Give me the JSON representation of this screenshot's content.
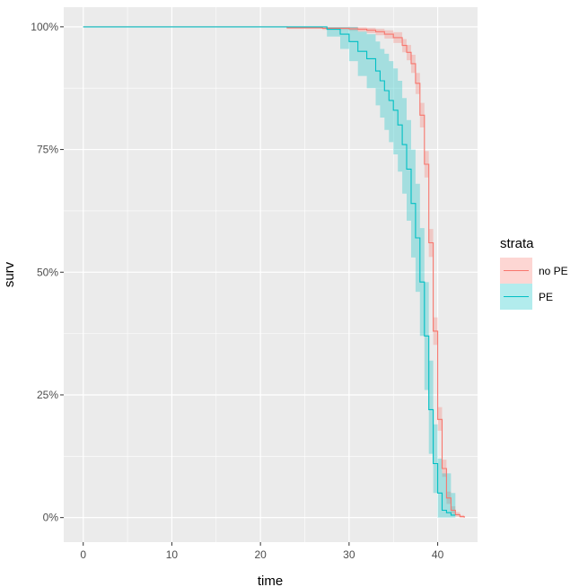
{
  "chart_data": {
    "type": "line",
    "title": "",
    "xlabel": "time",
    "ylabel": "surv",
    "xlim": [
      -2.2,
      44.5
    ],
    "ylim": [
      -0.05,
      1.04
    ],
    "x_ticks": [
      0,
      10,
      20,
      30,
      40
    ],
    "x_tick_labels": [
      "0",
      "10",
      "20",
      "30",
      "40"
    ],
    "y_ticks": [
      0,
      0.25,
      0.5,
      0.75,
      1.0
    ],
    "y_tick_labels": [
      "0%",
      "25%",
      "50%",
      "75%",
      "100%"
    ],
    "grid": true,
    "legend": {
      "title": "strata",
      "placement": "right"
    },
    "series": [
      {
        "name": "no PE",
        "color": "#F8766D",
        "step": true,
        "x": [
          0,
          23,
          27,
          30,
          31,
          32,
          33,
          34,
          35,
          36,
          36.5,
          37,
          37.5,
          38,
          38.5,
          39,
          39.5,
          40,
          40.5,
          41,
          41.5,
          42,
          42.5,
          43
        ],
        "y": [
          1.0,
          0.998,
          0.997,
          0.996,
          0.995,
          0.993,
          0.99,
          0.985,
          0.978,
          0.962,
          0.948,
          0.925,
          0.885,
          0.82,
          0.72,
          0.56,
          0.38,
          0.2,
          0.1,
          0.04,
          0.015,
          0.006,
          0.002,
          0.0
        ],
        "lower": [
          1.0,
          0.996,
          0.994,
          0.992,
          0.99,
          0.987,
          0.983,
          0.976,
          0.967,
          0.948,
          0.932,
          0.906,
          0.863,
          0.795,
          0.693,
          0.531,
          0.352,
          0.177,
          0.083,
          0.028,
          0.008,
          0.002,
          0.0,
          0.0
        ],
        "upper": [
          1.0,
          1.0,
          1.0,
          1.0,
          0.999,
          0.998,
          0.996,
          0.993,
          0.989,
          0.975,
          0.963,
          0.943,
          0.906,
          0.845,
          0.747,
          0.588,
          0.408,
          0.225,
          0.118,
          0.053,
          0.023,
          0.011,
          0.005,
          0.002
        ]
      },
      {
        "name": "PE",
        "color": "#00BFC4",
        "step": true,
        "x": [
          0,
          27.5,
          29,
          30,
          31,
          32,
          33,
          33.5,
          34,
          34.5,
          35,
          35.5,
          36,
          36.5,
          37,
          37.5,
          38,
          38.5,
          39,
          39.5,
          40,
          40.5,
          41,
          41.5,
          42
        ],
        "y": [
          1.0,
          0.995,
          0.985,
          0.97,
          0.95,
          0.935,
          0.91,
          0.89,
          0.87,
          0.85,
          0.83,
          0.8,
          0.76,
          0.71,
          0.64,
          0.57,
          0.48,
          0.37,
          0.22,
          0.11,
          0.05,
          0.015,
          0.01,
          0.005,
          0.005
        ],
        "lower": [
          1.0,
          0.98,
          0.955,
          0.93,
          0.9,
          0.875,
          0.84,
          0.815,
          0.79,
          0.765,
          0.74,
          0.705,
          0.66,
          0.605,
          0.53,
          0.46,
          0.37,
          0.26,
          0.13,
          0.05,
          0.0,
          0.0,
          0.0,
          0.0,
          0.0
        ],
        "upper": [
          1.0,
          1.0,
          1.0,
          1.0,
          0.99,
          0.985,
          0.97,
          0.955,
          0.945,
          0.93,
          0.915,
          0.89,
          0.855,
          0.81,
          0.75,
          0.68,
          0.59,
          0.48,
          0.32,
          0.19,
          0.12,
          0.09,
          0.09,
          0.05,
          0.0
        ]
      }
    ]
  }
}
